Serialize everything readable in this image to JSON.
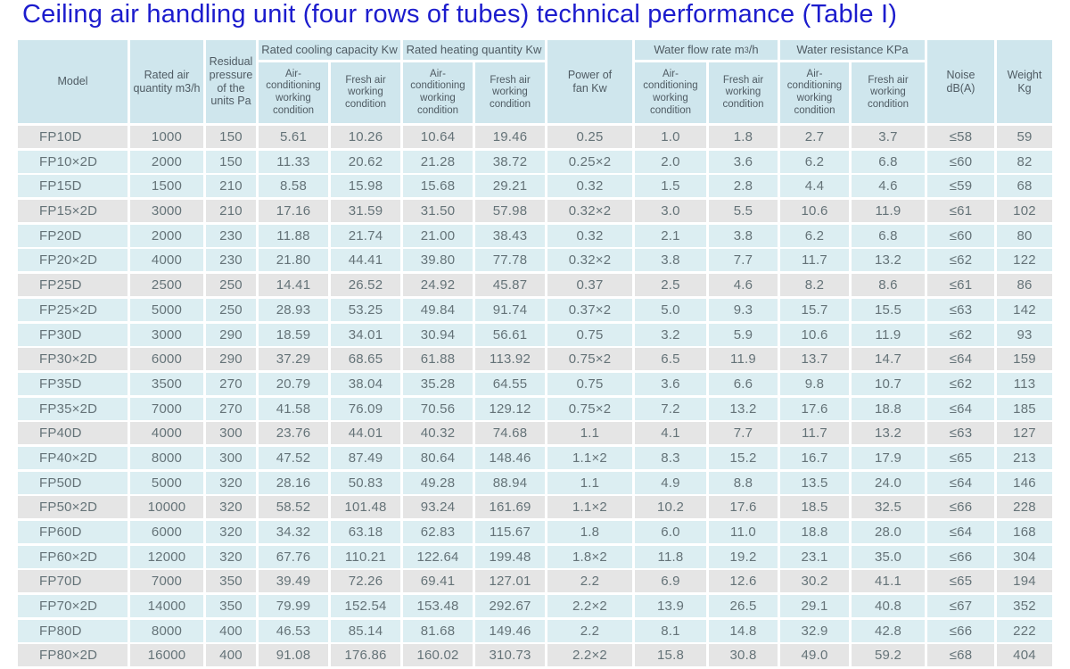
{
  "title": "Ceiling air handling unit (four rows of tubes) technical performance (Table I)",
  "colors": {
    "page_bg": "#ffffff",
    "title": "#1c1ccd",
    "header_bg": "#cfe6ed",
    "header_text": "#4f5b63",
    "row_blue": "#dceef2",
    "row_gray": "#e5e5e5",
    "data_text": "#657378"
  },
  "table": {
    "headers": {
      "model": "Model",
      "rated_air_quantity": "Rated air quantity m3/h",
      "residual_pressure": "Residual pressure of the units Pa",
      "cooling_group": "Rated cooling capacity Kw",
      "heating_group": "Rated heating quantity Kw",
      "power_of_fan": "Power of fan Kw",
      "water_flow_pre": "Water flow rate m",
      "water_flow_sup": "3",
      "water_flow_post": "/h",
      "water_resistance_group": "Water resistance KPa",
      "air_conditioning_sub": "Air-conditioning working condition",
      "fresh_air_sub": "Fresh air working condition",
      "noise": "Noise dB(A)",
      "weight": "Weight Kg"
    },
    "rows": [
      [
        "FP10D",
        "1000",
        "150",
        "5.61",
        "10.26",
        "10.64",
        "19.46",
        "0.25",
        "1.0",
        "1.8",
        "2.7",
        "3.7",
        "≤58",
        "59"
      ],
      [
        "FP10×2D",
        "2000",
        "150",
        "11.33",
        "20.62",
        "21.28",
        "38.72",
        "0.25×2",
        "2.0",
        "3.6",
        "6.2",
        "6.8",
        "≤60",
        "82"
      ],
      [
        "FP15D",
        "1500",
        "210",
        "8.58",
        "15.98",
        "15.68",
        "29.21",
        "0.32",
        "1.5",
        "2.8",
        "4.4",
        "4.6",
        "≤59",
        "68"
      ],
      [
        "FP15×2D",
        "3000",
        "210",
        "17.16",
        "31.59",
        "31.50",
        "57.98",
        "0.32×2",
        "3.0",
        "5.5",
        "10.6",
        "11.9",
        "≤61",
        "102"
      ],
      [
        "FP20D",
        "2000",
        "230",
        "11.88",
        "21.74",
        "21.00",
        "38.43",
        "0.32",
        "2.1",
        "3.8",
        "6.2",
        "6.8",
        "≤60",
        "80"
      ],
      [
        "FP20×2D",
        "4000",
        "230",
        "21.80",
        "44.41",
        "39.80",
        "77.78",
        "0.32×2",
        "3.8",
        "7.7",
        "11.7",
        "13.2",
        "≤62",
        "122"
      ],
      [
        "FP25D",
        "2500",
        "250",
        "14.41",
        "26.52",
        "24.92",
        "45.87",
        "0.37",
        "2.5",
        "4.6",
        "8.2",
        "8.6",
        "≤61",
        "86"
      ],
      [
        "FP25×2D",
        "5000",
        "250",
        "28.93",
        "53.25",
        "49.84",
        "91.74",
        "0.37×2",
        "5.0",
        "9.3",
        "15.7",
        "15.5",
        "≤63",
        "142"
      ],
      [
        "FP30D",
        "3000",
        "290",
        "18.59",
        "34.01",
        "30.94",
        "56.61",
        "0.75",
        "3.2",
        "5.9",
        "10.6",
        "11.9",
        "≤62",
        "93"
      ],
      [
        "FP30×2D",
        "6000",
        "290",
        "37.29",
        "68.65",
        "61.88",
        "113.92",
        "0.75×2",
        "6.5",
        "11.9",
        "13.7",
        "14.7",
        "≤64",
        "159"
      ],
      [
        "FP35D",
        "3500",
        "270",
        "20.79",
        "38.04",
        "35.28",
        "64.55",
        "0.75",
        "3.6",
        "6.6",
        "9.8",
        "10.7",
        "≤62",
        "113"
      ],
      [
        "FP35×2D",
        "7000",
        "270",
        "41.58",
        "76.09",
        "70.56",
        "129.12",
        "0.75×2",
        "7.2",
        "13.2",
        "17.6",
        "18.8",
        "≤64",
        "185"
      ],
      [
        "FP40D",
        "4000",
        "300",
        "23.76",
        "44.01",
        "40.32",
        "74.68",
        "1.1",
        "4.1",
        "7.7",
        "11.7",
        "13.2",
        "≤63",
        "127"
      ],
      [
        "FP40×2D",
        "8000",
        "300",
        "47.52",
        "87.49",
        "80.64",
        "148.46",
        "1.1×2",
        "8.3",
        "15.2",
        "16.7",
        "17.9",
        "≤65",
        "213"
      ],
      [
        "FP50D",
        "5000",
        "320",
        "28.16",
        "50.83",
        "49.28",
        "88.94",
        "1.1",
        "4.9",
        "8.8",
        "13.5",
        "24.0",
        "≤64",
        "146"
      ],
      [
        "FP50×2D",
        "10000",
        "320",
        "58.52",
        "101.48",
        "93.24",
        "161.69",
        "1.1×2",
        "10.2",
        "17.6",
        "18.5",
        "32.5",
        "≤66",
        "228"
      ],
      [
        "FP60D",
        "6000",
        "320",
        "34.32",
        "63.18",
        "62.83",
        "115.67",
        "1.8",
        "6.0",
        "11.0",
        "18.8",
        "28.0",
        "≤64",
        "168"
      ],
      [
        "FP60×2D",
        "12000",
        "320",
        "67.76",
        "110.21",
        "122.64",
        "199.48",
        "1.8×2",
        "11.8",
        "19.2",
        "23.1",
        "35.0",
        "≤66",
        "304"
      ],
      [
        "FP70D",
        "7000",
        "350",
        "39.49",
        "72.26",
        "69.41",
        "127.01",
        "2.2",
        "6.9",
        "12.6",
        "30.2",
        "41.1",
        "≤65",
        "194"
      ],
      [
        "FP70×2D",
        "14000",
        "350",
        "79.99",
        "152.54",
        "153.48",
        "292.67",
        "2.2×2",
        "13.9",
        "26.5",
        "29.1",
        "40.8",
        "≤67",
        "352"
      ],
      [
        "FP80D",
        "8000",
        "400",
        "46.53",
        "85.14",
        "81.68",
        "149.46",
        "2.2",
        "8.1",
        "14.8",
        "32.9",
        "42.8",
        "≤66",
        "222"
      ],
      [
        "FP80×2D",
        "16000",
        "400",
        "91.08",
        "176.86",
        "160.02",
        "310.73",
        "2.2×2",
        "15.8",
        "30.8",
        "49.0",
        "59.2",
        "≤68",
        "404"
      ]
    ],
    "gray_row_indexes": [
      0,
      3,
      6,
      9,
      12,
      15,
      18,
      21
    ]
  }
}
